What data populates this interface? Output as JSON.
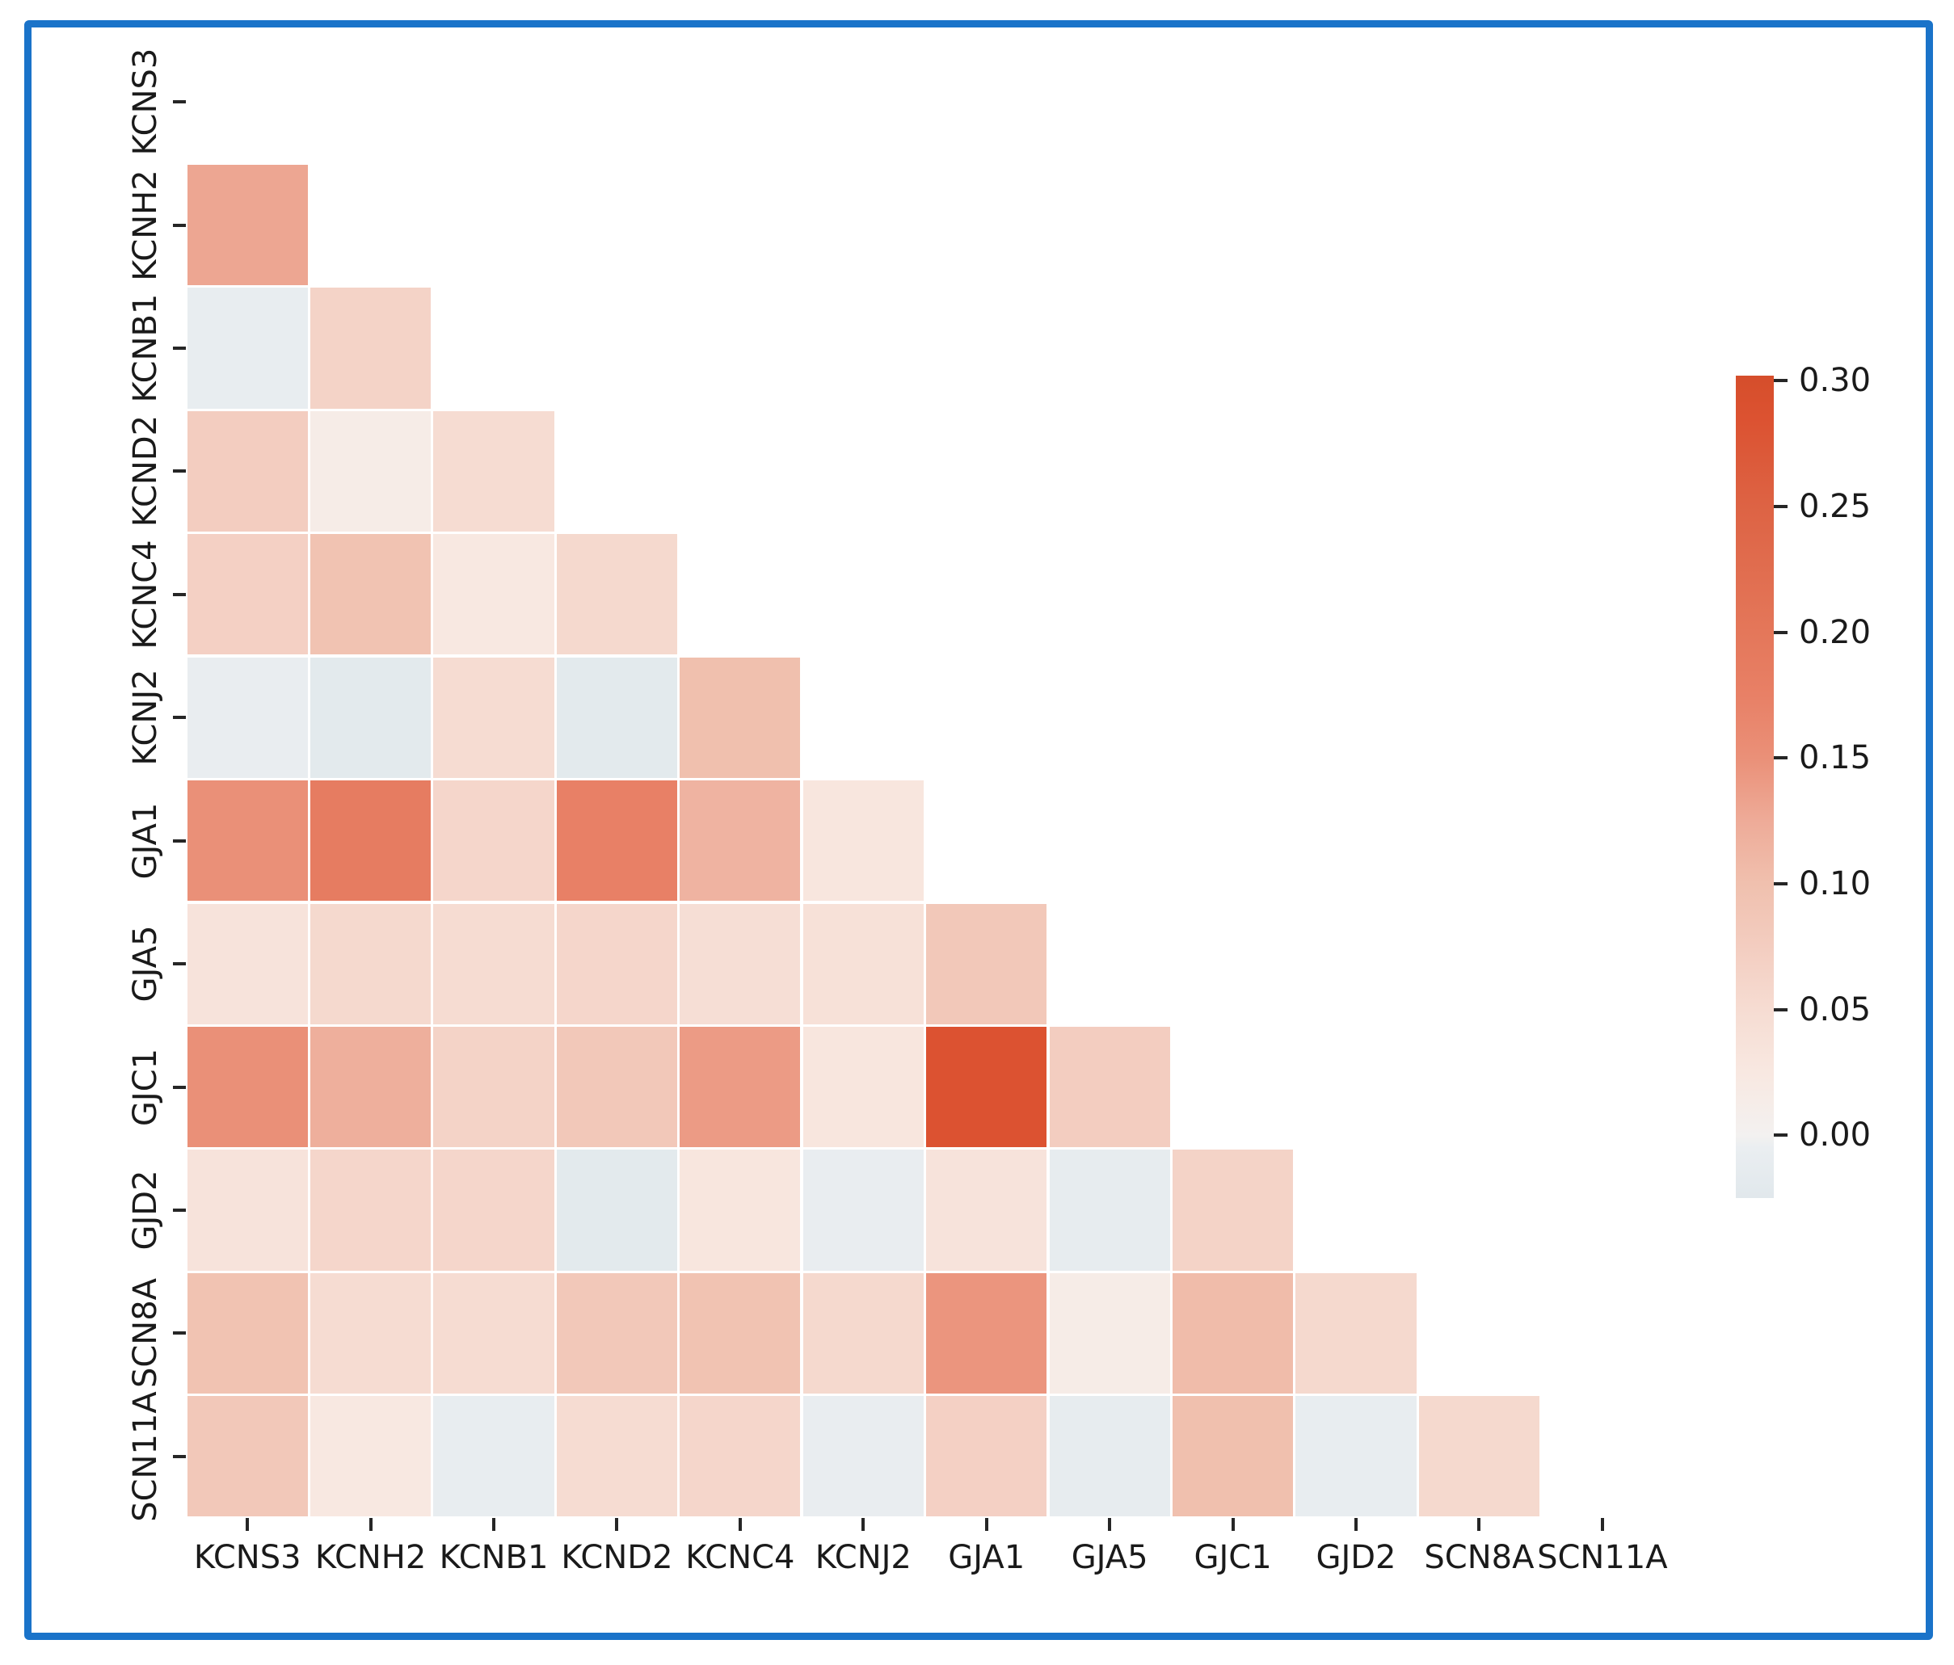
{
  "figure": {
    "border_color": "#1a73c9",
    "background_color": "#ffffff"
  },
  "chart_data": {
    "type": "heatmap",
    "title": "",
    "xlabel": "",
    "ylabel": "",
    "description": "Lower-triangular pairwise correlation heatmap (diagonal and upper triangle masked)",
    "genes": [
      "KCNS3",
      "KCNH2",
      "KCNB1",
      "KCND2",
      "KCNC4",
      "KCNJ2",
      "GJA1",
      "GJA5",
      "GJC1",
      "GJD2",
      "SCN8A",
      "SCN11A"
    ],
    "rows": [
      {
        "gene": "KCNS3",
        "values": []
      },
      {
        "gene": "KCNH2",
        "values": [
          0.13
        ]
      },
      {
        "gene": "KCNB1",
        "values": [
          -0.01,
          0.065
        ]
      },
      {
        "gene": "KCND2",
        "values": [
          0.075,
          0.015,
          0.05
        ]
      },
      {
        "gene": "KCNC4",
        "values": [
          0.07,
          0.095,
          0.025,
          0.055
        ]
      },
      {
        "gene": "KCNJ2",
        "values": [
          -0.008,
          -0.02,
          0.05,
          -0.02,
          0.1
        ]
      },
      {
        "gene": "GJA1",
        "values": [
          0.15,
          0.185,
          0.06,
          0.175,
          0.115,
          0.03
        ]
      },
      {
        "gene": "GJA5",
        "values": [
          0.035,
          0.055,
          0.05,
          0.06,
          0.045,
          0.04,
          0.085
        ]
      },
      {
        "gene": "GJC1",
        "values": [
          0.15,
          0.12,
          0.065,
          0.085,
          0.14,
          0.03,
          0.285,
          0.075
        ]
      },
      {
        "gene": "GJD2",
        "values": [
          0.035,
          0.06,
          0.06,
          -0.02,
          0.03,
          -0.008,
          0.035,
          -0.012,
          0.065
        ]
      },
      {
        "gene": "SCN8A",
        "values": [
          0.095,
          0.05,
          0.05,
          0.085,
          0.095,
          0.055,
          0.145,
          0.015,
          0.105,
          0.055
        ]
      },
      {
        "gene": "SCN11A",
        "values": [
          0.085,
          0.025,
          -0.01,
          0.05,
          0.06,
          -0.008,
          0.07,
          -0.012,
          0.1,
          -0.01,
          0.055
        ]
      }
    ],
    "colorbar": {
      "tick_labels": [
        "0.30",
        "0.25",
        "0.20",
        "0.15",
        "0.10",
        "0.05",
        "0.00"
      ],
      "tick_values": [
        0.3,
        0.25,
        0.2,
        0.15,
        0.1,
        0.05,
        0.0
      ],
      "vmax": 0.302,
      "vmin": -0.025,
      "scale_stops": [
        {
          "v": -0.025,
          "c": "#e1e8ec"
        },
        {
          "v": -0.005,
          "c": "#eaeef1"
        },
        {
          "v": 0.0,
          "c": "#f3f1f0"
        },
        {
          "v": 0.025,
          "c": "#f8e8e1"
        },
        {
          "v": 0.05,
          "c": "#f6dcd2"
        },
        {
          "v": 0.075,
          "c": "#f3cdc0"
        },
        {
          "v": 0.1,
          "c": "#f0c0ae"
        },
        {
          "v": 0.125,
          "c": "#eeab98"
        },
        {
          "v": 0.15,
          "c": "#ea9078"
        },
        {
          "v": 0.175,
          "c": "#e88066"
        },
        {
          "v": 0.2,
          "c": "#e4775a"
        },
        {
          "v": 0.25,
          "c": "#dd6344"
        },
        {
          "v": 0.285,
          "c": "#dc5231"
        },
        {
          "v": 0.302,
          "c": "#d54e2b"
        }
      ],
      "grid_on": false,
      "legend_position": "right"
    }
  }
}
